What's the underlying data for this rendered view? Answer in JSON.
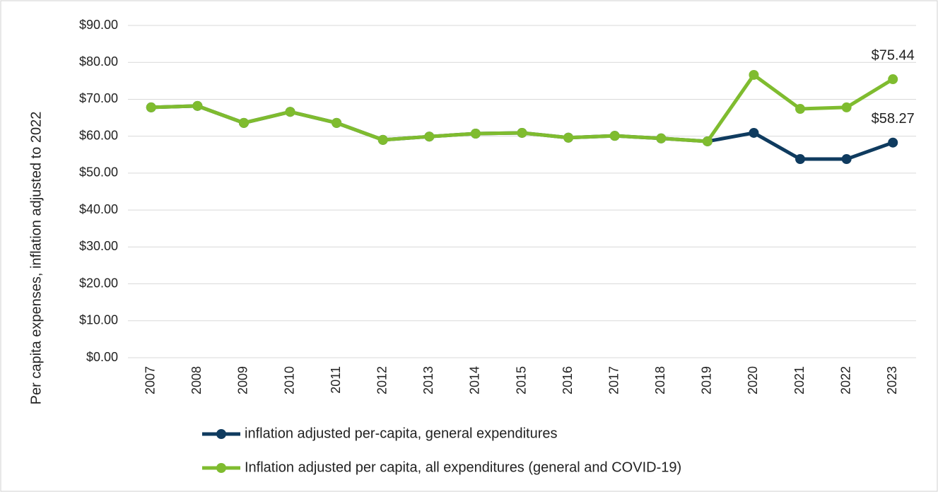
{
  "chart_data": {
    "type": "line",
    "y_label": "Per capita expenses, inflation adjusted to 2022",
    "categories": [
      "2007",
      "2008",
      "2009",
      "2010",
      "2011",
      "2012",
      "2013",
      "2014",
      "2015",
      "2016",
      "2017",
      "2018",
      "2019",
      "2020",
      "2021",
      "2022",
      "2023"
    ],
    "series": [
      {
        "name": "inflation adjusted per-capita, general expenditures",
        "color": "#0f3b5f",
        "values": [
          67.8,
          68.2,
          63.6,
          66.6,
          63.6,
          59.0,
          59.9,
          60.7,
          60.9,
          59.6,
          60.1,
          59.4,
          58.6,
          60.9,
          53.8,
          53.8,
          58.27
        ],
        "value_labels": [
          null,
          null,
          null,
          null,
          null,
          null,
          null,
          null,
          null,
          null,
          null,
          null,
          null,
          null,
          null,
          null,
          "$58.27"
        ]
      },
      {
        "name": "Inflation adjusted per capita, all expenditures (general and COVID-19)",
        "color": "#7fbc2f",
        "values": [
          67.8,
          68.2,
          63.6,
          66.6,
          63.6,
          59.0,
          59.9,
          60.7,
          60.9,
          59.6,
          60.1,
          59.4,
          58.6,
          76.6,
          67.4,
          67.8,
          75.44
        ],
        "value_labels": [
          null,
          null,
          null,
          null,
          null,
          null,
          null,
          null,
          null,
          null,
          null,
          null,
          null,
          null,
          null,
          null,
          "$75.44"
        ]
      }
    ],
    "ylim": [
      0,
      90
    ],
    "yticks": [
      {
        "value": 0,
        "label": "$0.00"
      },
      {
        "value": 10,
        "label": "$10.00"
      },
      {
        "value": 20,
        "label": "$20.00"
      },
      {
        "value": 30,
        "label": "$30.00"
      },
      {
        "value": 40,
        "label": "$40.00"
      },
      {
        "value": 50,
        "label": "$50.00"
      },
      {
        "value": 60,
        "label": "$60.00"
      },
      {
        "value": 70,
        "label": "$70.00"
      },
      {
        "value": 80,
        "label": "$80.00"
      },
      {
        "value": 90,
        "label": "$90.00"
      }
    ],
    "grid": true,
    "legend": "bottom"
  }
}
